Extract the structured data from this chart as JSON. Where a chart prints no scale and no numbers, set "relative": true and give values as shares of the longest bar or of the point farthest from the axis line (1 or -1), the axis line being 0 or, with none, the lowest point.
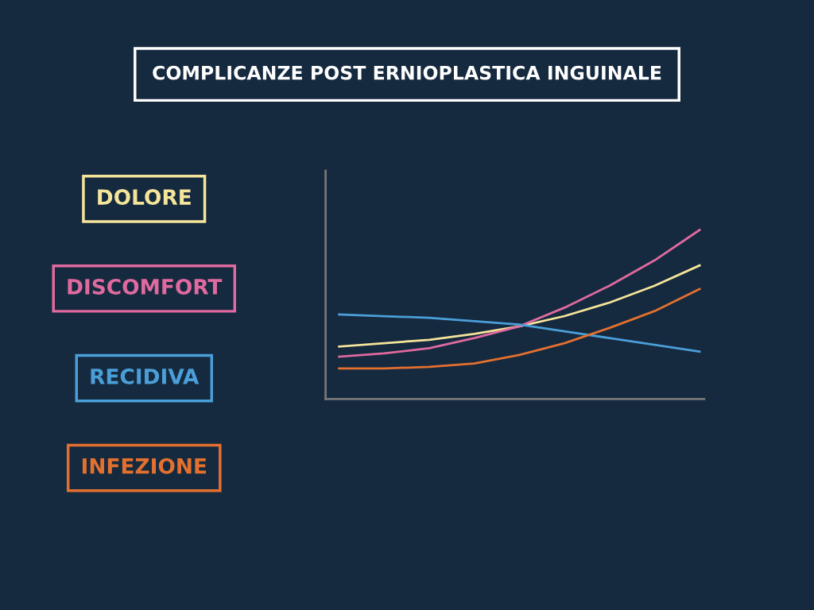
{
  "chart_data": {
    "type": "line",
    "title": "COMPLICANZE POST ERNIOPLASTICA INGUINALE",
    "relative": true,
    "legend": "left",
    "marker": "none",
    "line_style": "solid",
    "grid": false,
    "categories": [
      null,
      null,
      null,
      null,
      null,
      null,
      null,
      null,
      null
    ],
    "series": [
      {
        "name": "DOLORE",
        "color": "#f5e59a",
        "values": [
          0.31,
          0.33,
          0.35,
          0.385,
          0.43,
          0.49,
          0.57,
          0.67,
          0.79
        ]
      },
      {
        "name": "DISCOMFORT",
        "color": "#e06a9f",
        "values": [
          0.25,
          0.27,
          0.3,
          0.36,
          0.43,
          0.54,
          0.67,
          0.82,
          1
        ]
      },
      {
        "name": "RECIDIVA",
        "color": "#4a9fd8",
        "values": [
          0.5,
          0.49,
          0.48,
          0.46,
          0.44,
          0.4,
          0.36,
          0.32,
          0.28
        ]
      },
      {
        "name": "INFEZIONE",
        "color": "#e3702f",
        "values": [
          0.18,
          0.18,
          0.19,
          0.21,
          0.26,
          0.33,
          0.42,
          0.52,
          0.65
        ]
      }
    ]
  }
}
